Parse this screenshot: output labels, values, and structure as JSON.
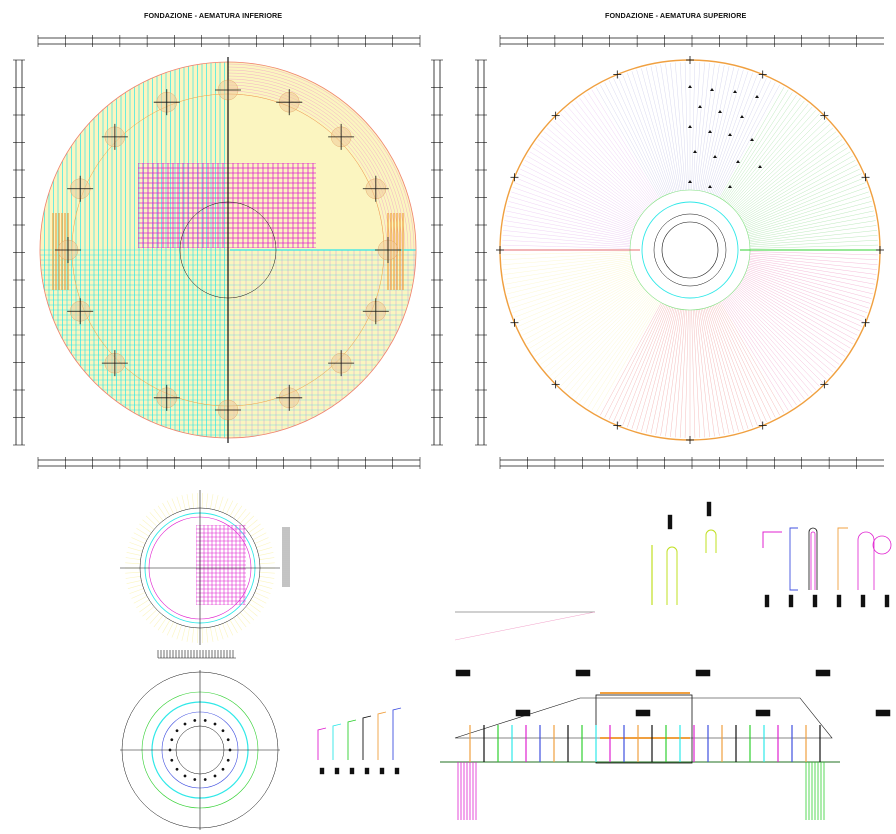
{
  "drawing": {
    "title_left": "FONDAZIONE - AEMATURA INFERIORE",
    "title_right": "FONDAZIONE - AEMATURA SUPERIORE"
  },
  "colors": {
    "cyan": "#2fe8e8",
    "magenta": "#e020d0",
    "orange": "#f0a040",
    "pink": "#f0a0c8",
    "light_yellow": "#fbf5c0",
    "green": "#30d030",
    "blue": "#4050e0",
    "dark": "#111111",
    "gray_lines": "#b0b0d0"
  }
}
